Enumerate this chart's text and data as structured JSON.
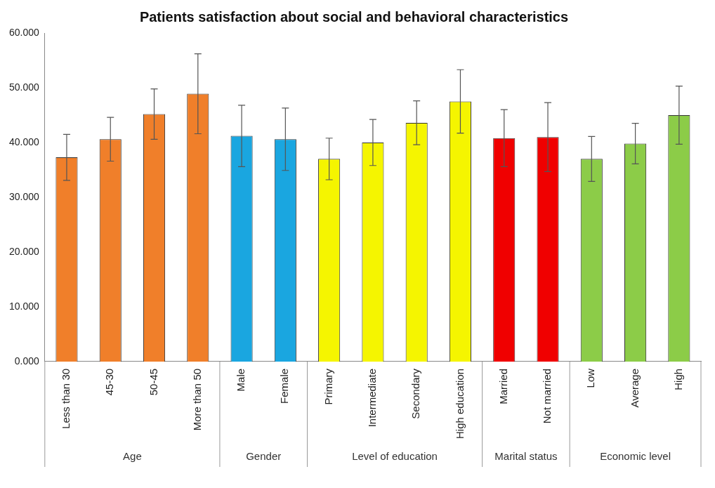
{
  "chart_data": {
    "type": "bar",
    "title": "Patients satisfaction about social and behavioral characteristics",
    "categories": [
      "Less than 30",
      "45-30",
      "50-45",
      "More than 50",
      "Male",
      "Female",
      "Primary",
      "Intermediate",
      "Secondary",
      "High education",
      "Married",
      "Not married",
      "Low",
      "Average",
      "High"
    ],
    "values": [
      37.3,
      40.6,
      45.2,
      48.9,
      41.2,
      40.6,
      37.0,
      40.0,
      43.6,
      47.5,
      40.8,
      41.0,
      37.0,
      39.8,
      45.0
    ],
    "errors": [
      4.2,
      4.0,
      4.6,
      7.3,
      5.6,
      5.7,
      3.8,
      4.2,
      4.0,
      5.8,
      5.2,
      6.3,
      4.1,
      3.7,
      5.3
    ],
    "colors": [
      "#f07f2a",
      "#f07f2a",
      "#f07f2a",
      "#f07f2a",
      "#1aa6e0",
      "#1aa6e0",
      "#f5f500",
      "#f5f500",
      "#f5f500",
      "#f5f500",
      "#f00000",
      "#f00000",
      "#8ccc48",
      "#8ccc48",
      "#8ccc48"
    ],
    "annotations": [
      "Age",
      "Gender",
      "Level of education",
      "Marital status",
      "Economic level"
    ],
    "ylim": [
      0,
      60
    ],
    "yticks": [
      {
        "value": 0,
        "label": "0.000"
      },
      {
        "value": 10,
        "label": "10.000"
      },
      {
        "value": 20,
        "label": "20.000"
      },
      {
        "value": 30,
        "label": "30.000"
      },
      {
        "value": 40,
        "label": "40.000"
      },
      {
        "value": 50,
        "label": "50.000"
      },
      {
        "value": 60,
        "label": "60.000"
      }
    ],
    "grid": false,
    "legend": false
  }
}
